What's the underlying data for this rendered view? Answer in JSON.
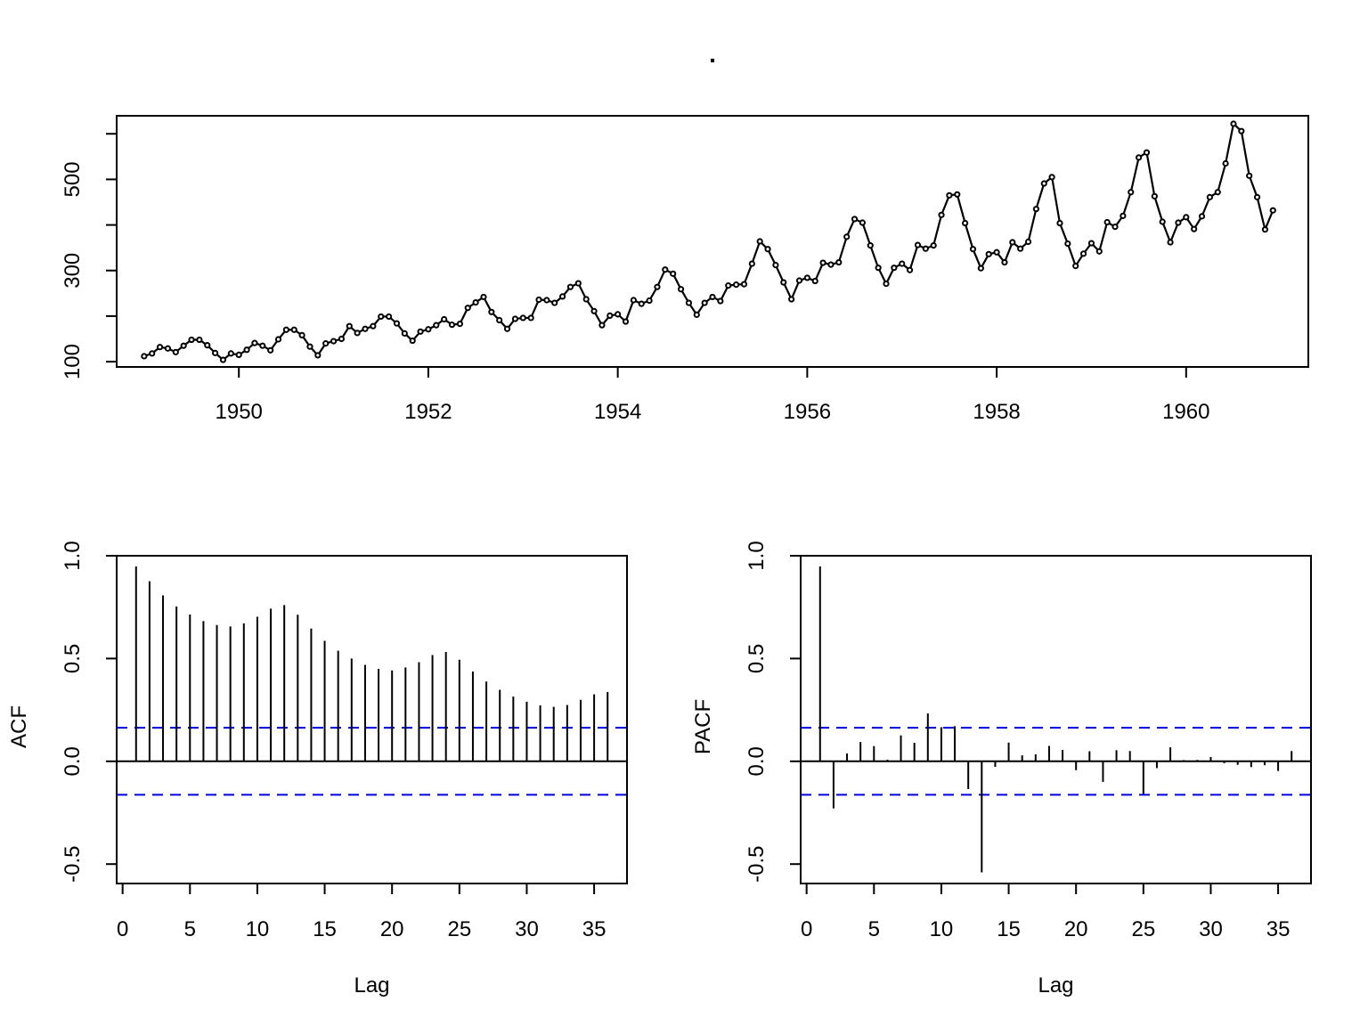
{
  "title": ".",
  "chart_data": [
    {
      "type": "line",
      "title": ".",
      "xlabel": "",
      "ylabel": "",
      "xlim": [
        1948.71,
        1961.29
      ],
      "ylim": [
        88.44,
        639.56
      ],
      "x_ticks": [
        "1950",
        "1952",
        "1954",
        "1956",
        "1958",
        "1960"
      ],
      "y_ticks": [
        "100",
        "200",
        "300",
        "400",
        "500",
        "600"
      ],
      "y_ticks_labeled": [
        "100",
        "300",
        "500"
      ],
      "start": [
        1949,
        1
      ],
      "frequency": 12,
      "markers": "open-circle",
      "values": [
        112,
        118,
        132,
        129,
        121,
        135,
        148,
        148,
        136,
        119,
        104,
        118,
        115,
        126,
        141,
        135,
        125,
        149,
        170,
        170,
        158,
        133,
        114,
        140,
        145,
        150,
        178,
        163,
        172,
        178,
        199,
        199,
        184,
        162,
        146,
        166,
        171,
        180,
        193,
        181,
        183,
        218,
        230,
        242,
        209,
        191,
        172,
        194,
        196,
        196,
        236,
        235,
        229,
        243,
        264,
        272,
        237,
        211,
        180,
        201,
        204,
        188,
        235,
        227,
        234,
        264,
        302,
        293,
        259,
        229,
        203,
        229,
        242,
        233,
        267,
        269,
        270,
        315,
        364,
        347,
        312,
        274,
        237,
        278,
        284,
        277,
        317,
        313,
        318,
        374,
        413,
        405,
        355,
        306,
        271,
        306,
        315,
        301,
        356,
        348,
        355,
        422,
        465,
        467,
        404,
        347,
        305,
        336,
        340,
        318,
        362,
        348,
        363,
        435,
        491,
        505,
        404,
        359,
        310,
        337,
        360,
        342,
        406,
        396,
        420,
        472,
        548,
        559,
        463,
        407,
        362,
        405,
        417,
        391,
        419,
        461,
        472,
        535,
        622,
        606,
        508,
        461,
        390,
        432
      ]
    },
    {
      "type": "bar",
      "xlabel": "Lag",
      "ylabel": "ACF",
      "xlim": [
        -0.44,
        37.44
      ],
      "ylim": [
        -0.5944,
        1.0
      ],
      "x_ticks": [
        "0",
        "5",
        "10",
        "15",
        "20",
        "25",
        "30",
        "35"
      ],
      "y_ticks": [
        "-0.5",
        "0.0",
        "0.5",
        "1.0"
      ],
      "lags": [
        1,
        2,
        3,
        4,
        5,
        6,
        7,
        8,
        9,
        10,
        11,
        12,
        13,
        14,
        15,
        16,
        17,
        18,
        19,
        20,
        21,
        22,
        23,
        24,
        25,
        26,
        27,
        28,
        29,
        30,
        31,
        32,
        33,
        34,
        35,
        36
      ],
      "values": [
        0.948,
        0.876,
        0.807,
        0.753,
        0.714,
        0.682,
        0.663,
        0.656,
        0.671,
        0.703,
        0.743,
        0.76,
        0.713,
        0.646,
        0.586,
        0.538,
        0.5,
        0.469,
        0.45,
        0.442,
        0.457,
        0.482,
        0.517,
        0.532,
        0.494,
        0.437,
        0.388,
        0.348,
        0.315,
        0.29,
        0.272,
        0.265,
        0.274,
        0.299,
        0.326,
        0.337
      ],
      "confidence_band": 0.163
    },
    {
      "type": "bar",
      "xlabel": "Lag",
      "ylabel": "PACF",
      "xlim": [
        -0.44,
        37.44
      ],
      "ylim": [
        -0.5944,
        1.0
      ],
      "x_ticks": [
        "0",
        "5",
        "10",
        "15",
        "20",
        "25",
        "30",
        "35"
      ],
      "y_ticks": [
        "-0.5",
        "0.0",
        "0.5",
        "1.0"
      ],
      "lags": [
        1,
        2,
        3,
        4,
        5,
        6,
        7,
        8,
        9,
        10,
        11,
        12,
        13,
        14,
        15,
        16,
        17,
        18,
        19,
        20,
        21,
        22,
        23,
        24,
        25,
        26,
        27,
        28,
        29,
        30,
        31,
        32,
        33,
        34,
        35,
        36
      ],
      "values": [
        0.948,
        -0.229,
        0.038,
        0.094,
        0.074,
        0.008,
        0.126,
        0.09,
        0.233,
        0.166,
        0.171,
        -0.135,
        -0.54,
        -0.027,
        0.091,
        0.029,
        0.034,
        0.075,
        0.055,
        -0.043,
        0.049,
        -0.1,
        0.054,
        0.05,
        -0.159,
        -0.033,
        0.068,
        0.006,
        0.007,
        0.021,
        -0.009,
        -0.017,
        -0.028,
        -0.019,
        -0.047,
        0.05
      ],
      "confidence_band": 0.163
    }
  ]
}
